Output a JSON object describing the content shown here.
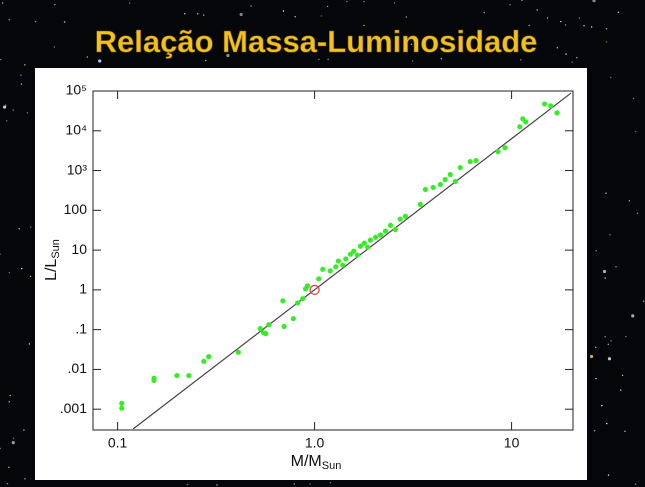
{
  "chart_data": {
    "type": "scatter",
    "title": "Relação Massa-Luminosidade",
    "xlabel": "M/M",
    "xlabel_sub": "Sun",
    "ylabel": "L/L",
    "ylabel_sub": "Sun",
    "xscale": "log",
    "yscale": "log",
    "xlim": [
      0.075,
      20.5
    ],
    "ylim": [
      0.0003,
      100000
    ],
    "xticks": [
      0.1,
      {
        "value": 1,
        "label": "1.0"
      },
      10
    ],
    "yticks": [
      {
        "value": 100000,
        "label": "10⁵"
      },
      {
        "value": 10000,
        "label": "10⁴"
      },
      {
        "value": 1000,
        "label": "10³"
      },
      100,
      10,
      1,
      {
        "value": 0.1,
        "label": ".1"
      },
      {
        "value": 0.01,
        "label": ".01"
      },
      {
        "value": 0.001,
        "label": ".001"
      }
    ],
    "color": "#33ee22",
    "x": [
      0.105,
      0.105,
      0.153,
      0.153,
      0.2,
      0.23,
      0.274,
      0.29,
      0.41,
      0.53,
      0.55,
      0.565,
      0.585,
      0.7,
      0.69,
      0.78,
      0.82,
      0.87,
      0.9,
      0.92,
      1.05,
      1.1,
      1.2,
      1.28,
      1.32,
      1.39,
      1.44,
      1.52,
      1.58,
      1.65,
      1.71,
      1.79,
      1.86,
      1.92,
      2.04,
      2.16,
      2.29,
      2.43,
      2.57,
      2.72,
      2.89,
      3.44,
      3.65,
      4.0,
      4.35,
      4.6,
      4.88,
      5.18,
      5.49,
      6.16,
      6.6,
      8.54,
      9.26,
      11.0,
      11.4,
      11.8,
      14.7,
      15.8,
      17.0
    ],
    "y": [
      0.0014,
      0.00106,
      0.006,
      0.0053,
      0.007,
      0.007,
      0.016,
      0.021,
      0.027,
      0.106,
      0.084,
      0.079,
      0.133,
      0.12,
      0.53,
      0.19,
      0.47,
      0.6,
      1.06,
      1.26,
      1.9,
      3.3,
      3.0,
      3.8,
      5.3,
      4.2,
      6.0,
      7.9,
      9.4,
      7.5,
      12.6,
      15,
      11.9,
      17.8,
      21,
      24,
      30,
      42,
      33,
      60,
      71,
      141,
      335,
      376,
      447,
      596,
      794,
      531,
      1190,
      1680,
      1780,
      2985,
      3760,
      12600,
      20000,
      16800,
      47300,
      42200,
      28200
    ],
    "fit": {
      "color": "#444444",
      "x": [
        0.12,
        20
      ],
      "y": [
        0.00032,
        88000
      ]
    },
    "sun": {
      "color": "#e05050",
      "x": 1,
      "y": 1
    }
  }
}
